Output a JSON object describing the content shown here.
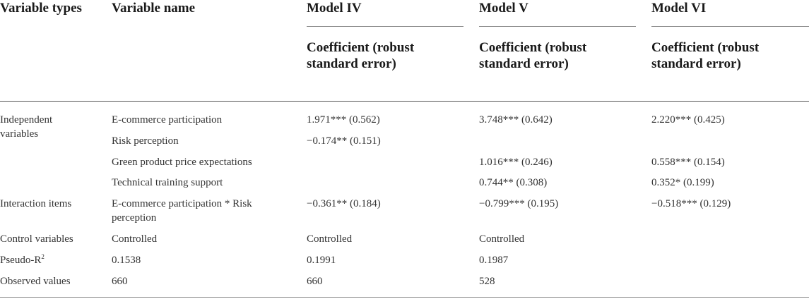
{
  "header": {
    "col_types": "Variable types",
    "col_name": "Variable name",
    "models": [
      "Model IV",
      "Model V",
      "Model VI"
    ],
    "subheader": "Coefficient (robust standard error)"
  },
  "rows": [
    {
      "type": "Independent variables",
      "name": "E-commerce participation",
      "m4": "1.971*** (0.562)",
      "m5": "3.748*** (0.642)",
      "m6": "2.220*** (0.425)"
    },
    {
      "type": "",
      "name": "Risk perception",
      "m4": "−0.174** (0.151)",
      "m5": "",
      "m6": ""
    },
    {
      "type": "",
      "name": "Green product price expectations",
      "m4": "",
      "m5": "1.016*** (0.246)",
      "m6": "0.558*** (0.154)"
    },
    {
      "type": "",
      "name": "Technical training support",
      "m4": "",
      "m5": "0.744** (0.308)",
      "m6": "0.352* (0.199)"
    },
    {
      "type": "Interaction items",
      "name": "E-commerce participation * Risk perception",
      "m4": "−0.361** (0.184)",
      "m5": "−0.799*** (0.195)",
      "m6": "−0.518*** (0.129)"
    },
    {
      "type": "Control variables",
      "name": "Controlled",
      "m4": "Controlled",
      "m5": "Controlled",
      "m6": ""
    },
    {
      "type": "Pseudo-R",
      "type_sup": "2",
      "name": "0.1538",
      "m4": "0.1991",
      "m5": "0.1987",
      "m6": ""
    },
    {
      "type": "Observed values",
      "name": "660",
      "m4": "660",
      "m5": "528",
      "m6": ""
    }
  ]
}
